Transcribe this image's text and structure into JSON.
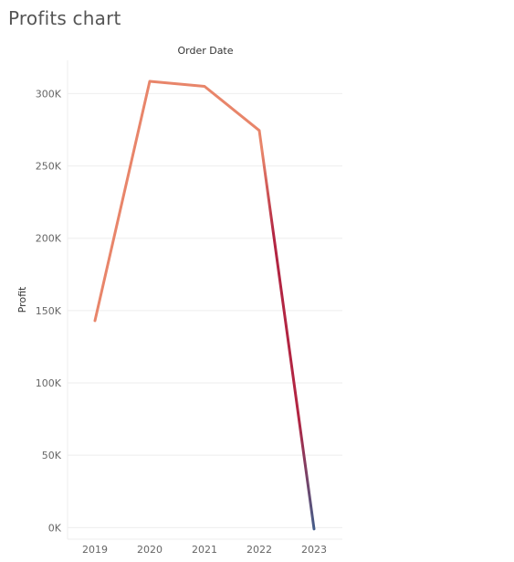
{
  "page": {
    "title": "Profits chart"
  },
  "chart_data": {
    "type": "line",
    "title": "Profits chart",
    "xlabel": "Order Date",
    "ylabel": "Profit",
    "x": [
      "2019",
      "2020",
      "2021",
      "2022",
      "2023"
    ],
    "series": [
      {
        "values": [
          143000,
          308500,
          305000,
          274500,
          -1000
        ]
      }
    ],
    "ylim": [
      -8000,
      323000
    ],
    "yticks": [
      0,
      50000,
      100000,
      150000,
      200000,
      250000,
      300000
    ],
    "ytick_labels": [
      "0K",
      "50K",
      "100K",
      "150K",
      "200K",
      "250K",
      "300K"
    ],
    "grid": true,
    "colors": {
      "line_gradient": [
        "#e8856a",
        "#b22542",
        "#3f5f8c"
      ],
      "gridline": "#eeeeee",
      "axis": "#cccccc"
    }
  }
}
